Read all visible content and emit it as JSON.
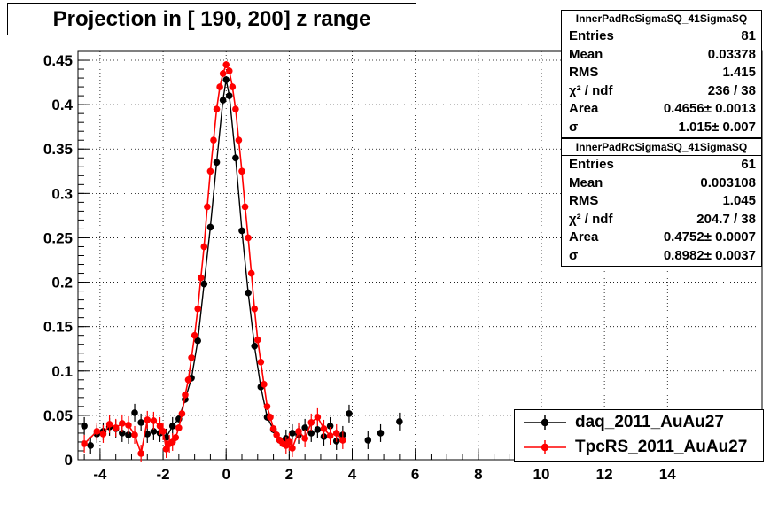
{
  "title": "Projection in [ 190, 200] z range",
  "stats_boxes": [
    {
      "name": "InnerPadRcSigmaSQ_41SigmaSQ",
      "rows": [
        {
          "label": "Entries",
          "value": "81"
        },
        {
          "label": "Mean",
          "value": "0.03378"
        },
        {
          "label": "RMS",
          "value": "1.415"
        },
        {
          "label": "χ² / ndf",
          "value": "236 / 38"
        },
        {
          "label": "Area",
          "value": "0.4656± 0.0013"
        },
        {
          "label": "σ",
          "value": "1.015± 0.007"
        }
      ]
    },
    {
      "name": "InnerPadRcSigmaSQ_41SigmaSQ",
      "rows": [
        {
          "label": "Entries",
          "value": "61"
        },
        {
          "label": "Mean",
          "value": "0.003108"
        },
        {
          "label": "RMS",
          "value": "1.045"
        },
        {
          "label": "χ² / ndf",
          "value": "204.7 / 38"
        },
        {
          "label": "Area",
          "value": "0.4752± 0.0007"
        },
        {
          "label": "σ",
          "value": "0.8982± 0.0037"
        }
      ]
    }
  ],
  "legend": [
    {
      "label": "daq_2011_AuAu27",
      "color": "#000000"
    },
    {
      "label": "TpcRS_2011_AuAu27",
      "color": "#ff0000"
    }
  ],
  "chart_data": {
    "type": "scatter",
    "title": "Projection in [ 190, 200] z range",
    "xlabel": "",
    "ylabel": "",
    "xlim": [
      -4.7,
      17.0
    ],
    "ylim": [
      0,
      0.46
    ],
    "x_ticks": [
      -4,
      -2,
      0,
      2,
      4,
      6,
      8,
      10,
      12,
      14
    ],
    "y_ticks": [
      0,
      0.05,
      0.1,
      0.15,
      0.2,
      0.25,
      0.3,
      0.35,
      0.4,
      0.45
    ],
    "grid": true,
    "legend_position": "bottom-right",
    "series": [
      {
        "name": "daq_2011_AuAu27",
        "color": "#000000",
        "points": [
          [
            -4.5,
            0.038
          ],
          [
            -4.3,
            0.016
          ],
          [
            -4.1,
            0.029
          ],
          [
            -3.9,
            0.032
          ],
          [
            -3.7,
            0.037
          ],
          [
            -3.5,
            0.035
          ],
          [
            -3.3,
            0.03
          ],
          [
            -3.1,
            0.028
          ],
          [
            -2.9,
            0.053
          ],
          [
            -2.7,
            0.042
          ],
          [
            -2.5,
            0.029
          ],
          [
            -2.3,
            0.032
          ],
          [
            -2.1,
            0.03
          ],
          [
            -1.9,
            0.025
          ],
          [
            -1.7,
            0.038
          ],
          [
            -1.5,
            0.046
          ],
          [
            -1.3,
            0.068
          ],
          [
            -1.1,
            0.092
          ],
          [
            -0.9,
            0.134
          ],
          [
            -0.7,
            0.198
          ],
          [
            -0.5,
            0.262
          ],
          [
            -0.3,
            0.335
          ],
          [
            -0.1,
            0.405
          ],
          [
            0.0,
            0.428
          ],
          [
            0.1,
            0.41
          ],
          [
            0.3,
            0.34
          ],
          [
            0.5,
            0.258
          ],
          [
            0.7,
            0.188
          ],
          [
            0.9,
            0.128
          ],
          [
            1.1,
            0.082
          ],
          [
            1.3,
            0.048
          ],
          [
            1.5,
            0.034
          ],
          [
            1.7,
            0.022
          ],
          [
            1.9,
            0.024
          ],
          [
            2.1,
            0.03
          ],
          [
            2.3,
            0.028
          ],
          [
            2.5,
            0.036
          ],
          [
            2.7,
            0.03
          ],
          [
            2.9,
            0.034
          ],
          [
            3.1,
            0.026
          ],
          [
            3.3,
            0.038
          ],
          [
            3.5,
            0.021
          ],
          [
            3.7,
            0.028
          ],
          [
            3.9,
            0.052
          ],
          [
            4.5,
            0.022
          ],
          [
            4.9,
            0.03
          ],
          [
            5.5,
            0.043
          ]
        ]
      },
      {
        "name": "TpcRS_2011_AuAu27",
        "color": "#ff0000",
        "points": [
          [
            -4.5,
            0.018
          ],
          [
            -4.1,
            0.032
          ],
          [
            -3.9,
            0.029
          ],
          [
            -3.7,
            0.04
          ],
          [
            -3.5,
            0.036
          ],
          [
            -3.3,
            0.041
          ],
          [
            -3.1,
            0.039
          ],
          [
            -2.9,
            0.028
          ],
          [
            -2.7,
            0.007
          ],
          [
            -2.5,
            0.045
          ],
          [
            -2.3,
            0.044
          ],
          [
            -2.1,
            0.038
          ],
          [
            -2.0,
            0.032
          ],
          [
            -1.9,
            0.012
          ],
          [
            -1.8,
            0.018
          ],
          [
            -1.7,
            0.02
          ],
          [
            -1.6,
            0.025
          ],
          [
            -1.5,
            0.036
          ],
          [
            -1.4,
            0.052
          ],
          [
            -1.3,
            0.073
          ],
          [
            -1.2,
            0.09
          ],
          [
            -1.1,
            0.115
          ],
          [
            -1.0,
            0.14
          ],
          [
            -0.9,
            0.17
          ],
          [
            -0.8,
            0.205
          ],
          [
            -0.7,
            0.24
          ],
          [
            -0.6,
            0.285
          ],
          [
            -0.5,
            0.325
          ],
          [
            -0.4,
            0.36
          ],
          [
            -0.3,
            0.395
          ],
          [
            -0.2,
            0.42
          ],
          [
            -0.1,
            0.435
          ],
          [
            0.0,
            0.445
          ],
          [
            0.1,
            0.438
          ],
          [
            0.2,
            0.42
          ],
          [
            0.3,
            0.395
          ],
          [
            0.4,
            0.36
          ],
          [
            0.5,
            0.325
          ],
          [
            0.6,
            0.285
          ],
          [
            0.7,
            0.25
          ],
          [
            0.8,
            0.21
          ],
          [
            0.9,
            0.17
          ],
          [
            1.0,
            0.135
          ],
          [
            1.1,
            0.11
          ],
          [
            1.2,
            0.085
          ],
          [
            1.3,
            0.06
          ],
          [
            1.4,
            0.048
          ],
          [
            1.5,
            0.035
          ],
          [
            1.6,
            0.028
          ],
          [
            1.7,
            0.022
          ],
          [
            1.8,
            0.018
          ],
          [
            1.9,
            0.016
          ],
          [
            2.0,
            0.02
          ],
          [
            2.1,
            0.013
          ],
          [
            2.3,
            0.032
          ],
          [
            2.5,
            0.024
          ],
          [
            2.7,
            0.042
          ],
          [
            2.9,
            0.048
          ],
          [
            3.1,
            0.035
          ],
          [
            3.3,
            0.027
          ],
          [
            3.5,
            0.03
          ],
          [
            3.7,
            0.022
          ]
        ]
      }
    ]
  }
}
